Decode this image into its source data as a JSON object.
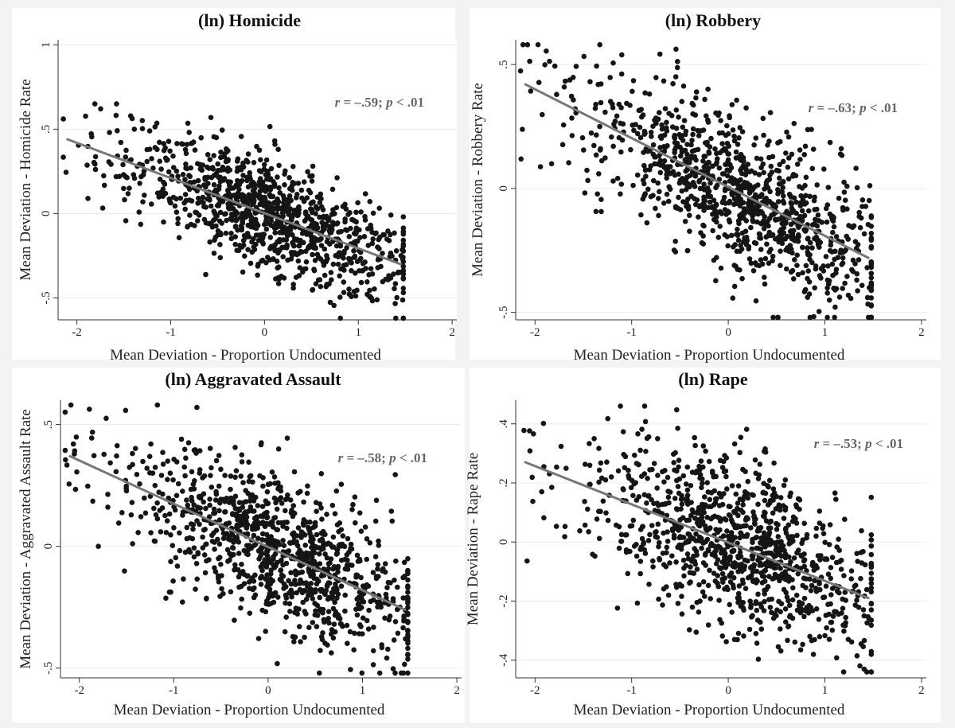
{
  "chart_data": [
    {
      "type": "scatter",
      "title": "(ln) Homicide",
      "xlabel": "Mean Deviation - Proportion Undocumented",
      "ylabel": "Mean Deviation - Homicide Rate",
      "xlim": [
        -2.2,
        2.05
      ],
      "ylim": [
        -0.63,
        1.03
      ],
      "xticks": [
        -2,
        -1,
        0,
        1,
        2
      ],
      "xtick_labels": [
        "-2",
        "-1",
        "0",
        "1",
        "2"
      ],
      "yticks": [
        -0.5,
        0,
        0.5,
        1
      ],
      "ytick_labels": [
        "-.5",
        "0",
        ".5",
        "1"
      ],
      "grid": true,
      "annotation": {
        "r_part": "r",
        "mid": " = –.59; ",
        "p_part": "p",
        "tail": " < .01"
      },
      "fit_line": {
        "x": [
          -2.1,
          1.45
        ],
        "y": [
          0.44,
          -0.3
        ]
      },
      "cloud": {
        "n": 1040,
        "x_center": 0.15,
        "x_spread": 0.72,
        "x_min": -2.15,
        "x_max": 1.48,
        "slope": -0.21,
        "intercept": 0.0,
        "noise": 0.17,
        "y_min": -0.62,
        "y_max": 0.65
      }
    },
    {
      "type": "scatter",
      "title": "(ln) Robbery",
      "xlabel": "Mean Deviation - Proportion Undocumented",
      "ylabel": "Mean Deviation - Robbery Rate",
      "xlim": [
        -2.2,
        2.05
      ],
      "ylim": [
        -0.53,
        0.6
      ],
      "xticks": [
        -2,
        -1,
        0,
        1,
        2
      ],
      "xtick_labels": [
        "-2",
        "-1",
        "0",
        "1",
        "2"
      ],
      "yticks": [
        -0.5,
        0,
        0.5
      ],
      "ytick_labels": [
        "-.5",
        "0",
        ".5"
      ],
      "grid": true,
      "annotation": {
        "r_part": "r",
        "mid": " = –.63; ",
        "p_part": "p",
        "tail": " < .01"
      },
      "fit_line": {
        "x": [
          -2.1,
          1.45
        ],
        "y": [
          0.42,
          -0.28
        ]
      },
      "cloud": {
        "n": 1040,
        "x_center": 0.15,
        "x_spread": 0.72,
        "x_min": -2.15,
        "x_max": 1.48,
        "slope": -0.2,
        "intercept": 0.0,
        "noise": 0.16,
        "y_min": -0.52,
        "y_max": 0.58
      }
    },
    {
      "type": "scatter",
      "title": "(ln) Aggravated Assault",
      "xlabel": "Mean Deviation - Proportion Undocumented",
      "ylabel": "Mean Deviation - Aggravated Assault Rate",
      "xlim": [
        -2.2,
        2.05
      ],
      "ylim": [
        -0.54,
        0.6
      ],
      "xticks": [
        -2,
        -1,
        0,
        1,
        2
      ],
      "xtick_labels": [
        "-2",
        "-1",
        "0",
        "1",
        "2"
      ],
      "yticks": [
        -0.5,
        0,
        0.5
      ],
      "ytick_labels": [
        "-.5",
        "0",
        ".5"
      ],
      "grid": true,
      "annotation": {
        "r_part": "r",
        "mid": " = –.58; ",
        "p_part": "p",
        "tail": " < .01"
      },
      "fit_line": {
        "x": [
          -2.1,
          1.45
        ],
        "y": [
          0.37,
          -0.26
        ]
      },
      "cloud": {
        "n": 1040,
        "x_center": 0.15,
        "x_spread": 0.72,
        "x_min": -2.15,
        "x_max": 1.48,
        "slope": -0.18,
        "intercept": 0.0,
        "noise": 0.16,
        "y_min": -0.52,
        "y_max": 0.58
      }
    },
    {
      "type": "scatter",
      "title": "(ln) Rape",
      "xlabel": "Mean Deviation - Proportion Undocumented",
      "ylabel": "Mean Deviation - Rape Rate",
      "xlim": [
        -2.2,
        2.05
      ],
      "ylim": [
        -0.46,
        0.48
      ],
      "xticks": [
        -2,
        -1,
        0,
        1,
        2
      ],
      "xtick_labels": [
        "-2",
        "-1",
        "0",
        "1",
        "2"
      ],
      "yticks": [
        -0.4,
        -0.2,
        0,
        0.2,
        0.4
      ],
      "ytick_labels": [
        "-.4",
        "-.2",
        "0",
        ".2",
        ".4"
      ],
      "grid": true,
      "annotation": {
        "r_part": "r",
        "mid": " = –.53; ",
        "p_part": "p",
        "tail": " < .01"
      },
      "fit_line": {
        "x": [
          -2.1,
          1.45
        ],
        "y": [
          0.27,
          -0.19
        ]
      },
      "cloud": {
        "n": 1040,
        "x_center": 0.15,
        "x_spread": 0.72,
        "x_min": -2.15,
        "x_max": 1.48,
        "slope": -0.13,
        "intercept": 0.0,
        "noise": 0.14,
        "y_min": -0.44,
        "y_max": 0.46
      }
    }
  ],
  "colors": {
    "background": "#f3f3f3",
    "panel": "#ffffff",
    "points": "#151515",
    "fit_line": "#777777",
    "grid": "#ebebeb"
  }
}
